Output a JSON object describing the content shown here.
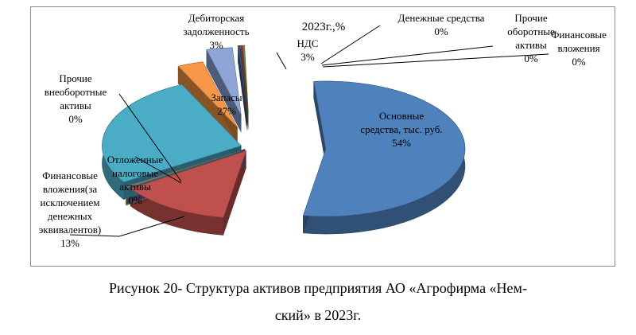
{
  "chart_data": {
    "type": "pie",
    "title": "2023г.,%",
    "slices": [
      {
        "key": "fixed",
        "label_lines": [
          "Основные",
          "средства, тыс. руб.",
          "54%"
        ],
        "value": 54,
        "color": "#4F81BD"
      },
      {
        "key": "fin",
        "label_lines": [
          "Финансовые",
          "вложения(за",
          "исключением",
          "денежных",
          "эквивалентов)",
          "13%"
        ],
        "value": 13,
        "color": "#C0504D"
      },
      {
        "key": "deferred",
        "label_lines": [
          "Отложенные",
          "налоговые",
          "активы",
          "0%"
        ],
        "value": 0,
        "color": "#9BBB59"
      },
      {
        "key": "other_noncurrent",
        "label_lines": [
          "Прочие",
          "внеоборотные",
          "активы",
          "0%"
        ],
        "value": 0,
        "color": "#8064A2"
      },
      {
        "key": "inventory",
        "label_lines": [
          "Запасы",
          "27%"
        ],
        "value": 27,
        "color": "#4BACC6"
      },
      {
        "key": "receivables",
        "label_lines": [
          "Дебиторская",
          "задолженность",
          "3%"
        ],
        "value": 3,
        "color": "#F79646"
      },
      {
        "key": "vat",
        "label_lines": [
          "НДС",
          "3%"
        ],
        "value": 3,
        "color": "#8EA5D6"
      },
      {
        "key": "cash",
        "label_lines": [
          "Денежные средства",
          "0%"
        ],
        "value": 0,
        "color": "#3A5F8A"
      },
      {
        "key": "other_current",
        "label_lines": [
          "Прочие",
          "оборотные",
          "активы",
          "0%"
        ],
        "value": 0,
        "color": "#8B3A38"
      },
      {
        "key": "fin_short",
        "label_lines": [
          "Финансовые",
          "вложения",
          "0%"
        ],
        "value": 0,
        "color": "#6F8F3D"
      }
    ],
    "legend": "none"
  },
  "caption": {
    "line1": "Рисунок 20- Структура активов предприятия АО «Агрофирма «Нем-",
    "line2": "ский» в 2023г."
  }
}
